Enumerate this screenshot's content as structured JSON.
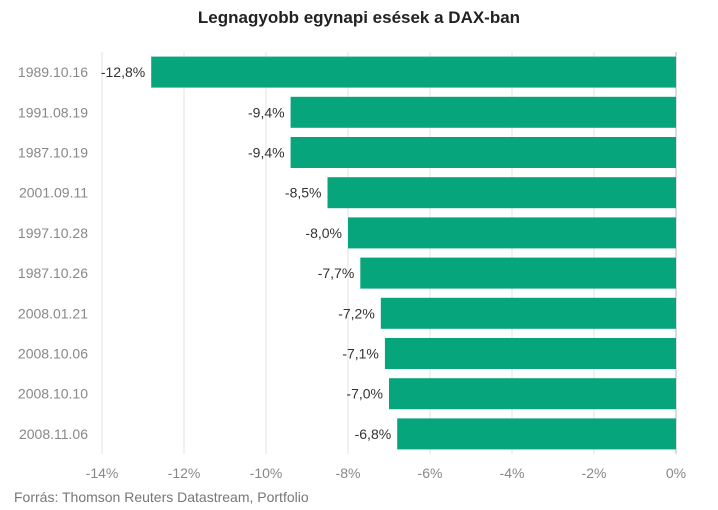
{
  "title": "Legnagyobb egynapi esések a DAX-ban",
  "source": "Forrás: Thomson Reuters Datastream, Portfolio",
  "colors": {
    "bar": "#07a57b",
    "grid": "#e3e3e3",
    "zero_line": "#b8b8b8"
  },
  "chart_data": {
    "type": "bar",
    "orientation": "horizontal",
    "title": "Legnagyobb egynapi esések a DAX-ban",
    "xlabel": "",
    "ylabel": "",
    "unit": "%",
    "categories": [
      "1989.10.16",
      "1991.08.19",
      "1987.10.19",
      "2001.09.11",
      "1997.10.28",
      "1987.10.26",
      "2008.01.21",
      "2008.10.06",
      "2008.10.10",
      "2008.11.06"
    ],
    "values": [
      -12.8,
      -9.4,
      -9.4,
      -8.5,
      -8.0,
      -7.7,
      -7.2,
      -7.1,
      -7.0,
      -6.8
    ],
    "value_labels": [
      "-12,8%",
      "-9,4%",
      "-9,4%",
      "-8,5%",
      "-8,0%",
      "-7,7%",
      "-7,2%",
      "-7,1%",
      "-7,0%",
      "-6,8%"
    ],
    "xlim": [
      -14,
      0
    ],
    "xticks": [
      -14,
      -12,
      -10,
      -8,
      -6,
      -4,
      -2,
      0
    ],
    "xtick_labels": [
      "-14%",
      "-12%",
      "-10%",
      "-8%",
      "-6%",
      "-4%",
      "-2%",
      "0%"
    ],
    "grid": "vertical",
    "legend": "none"
  }
}
